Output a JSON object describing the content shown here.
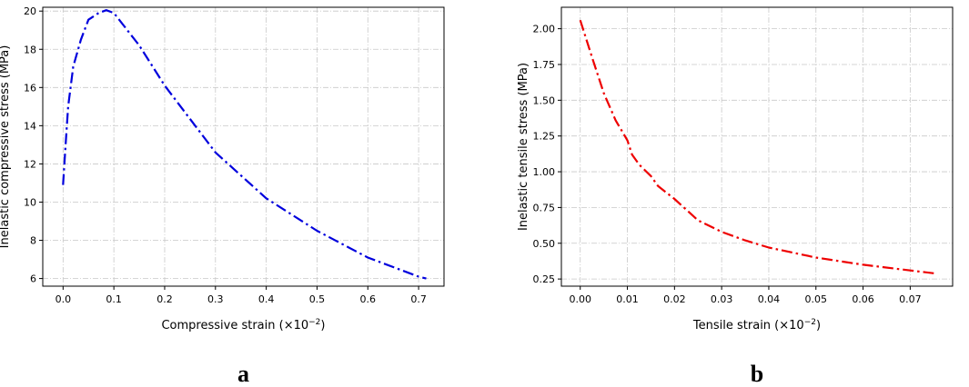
{
  "chart_data": [
    {
      "type": "line",
      "panel_label": "a",
      "xlabel": "Compressive strain (×10",
      "xlabel_exp": "−2",
      "xlabel_close": ")",
      "ylabel": "Inelastic compressive stress (MPa)",
      "xlim": [
        -0.04,
        0.75
      ],
      "ylim": [
        5.6,
        20.2
      ],
      "xticks": [
        0.0,
        0.1,
        0.2,
        0.3,
        0.4,
        0.5,
        0.6,
        0.7
      ],
      "xtick_labels": [
        "0.0",
        "0.1",
        "0.2",
        "0.3",
        "0.4",
        "0.5",
        "0.6",
        "0.7"
      ],
      "yticks": [
        6,
        8,
        10,
        12,
        14,
        16,
        18,
        20
      ],
      "ytick_labels": [
        "6",
        "8",
        "10",
        "12",
        "14",
        "16",
        "18",
        "20"
      ],
      "grid": true,
      "series": [
        {
          "color": "#0000dd",
          "linestyle": "dash-dot",
          "x": [
            0.0,
            0.005,
            0.01,
            0.02,
            0.035,
            0.05,
            0.07,
            0.085,
            0.1,
            0.15,
            0.2,
            0.3,
            0.4,
            0.5,
            0.6,
            0.7,
            0.715
          ],
          "y": [
            10.9,
            13.0,
            15.0,
            17.1,
            18.5,
            19.55,
            19.9,
            20.05,
            19.9,
            18.2,
            16.1,
            12.6,
            10.2,
            8.5,
            7.1,
            6.1,
            6.0
          ]
        }
      ]
    },
    {
      "type": "line",
      "panel_label": "b",
      "xlabel": "Tensile strain (×10",
      "xlabel_exp": "−2",
      "xlabel_close": ")",
      "ylabel": "Inelastic tensile stress (MPa)",
      "xlim": [
        -0.004,
        0.079
      ],
      "ylim": [
        0.2,
        2.15
      ],
      "xticks": [
        0.0,
        0.01,
        0.02,
        0.03,
        0.04,
        0.05,
        0.06,
        0.07
      ],
      "xtick_labels": [
        "0.00",
        "0.01",
        "0.02",
        "0.03",
        "0.04",
        "0.05",
        "0.06",
        "0.07"
      ],
      "yticks": [
        0.25,
        0.5,
        0.75,
        1.0,
        1.25,
        1.5,
        1.75,
        2.0
      ],
      "ytick_labels": [
        "0.25",
        "0.50",
        "0.75",
        "1.00",
        "1.25",
        "1.50",
        "1.75",
        "2.00"
      ],
      "grid": true,
      "series": [
        {
          "color": "#ee0000",
          "linestyle": "dash-dot",
          "x": [
            0.0,
            0.0025,
            0.005,
            0.0075,
            0.01,
            0.011,
            0.0125,
            0.015,
            0.0165,
            0.02,
            0.025,
            0.03,
            0.035,
            0.04,
            0.05,
            0.06,
            0.07,
            0.075
          ],
          "y": [
            2.06,
            1.8,
            1.55,
            1.36,
            1.22,
            1.12,
            1.05,
            0.97,
            0.9,
            0.81,
            0.66,
            0.58,
            0.52,
            0.47,
            0.4,
            0.35,
            0.31,
            0.29
          ]
        }
      ]
    }
  ]
}
